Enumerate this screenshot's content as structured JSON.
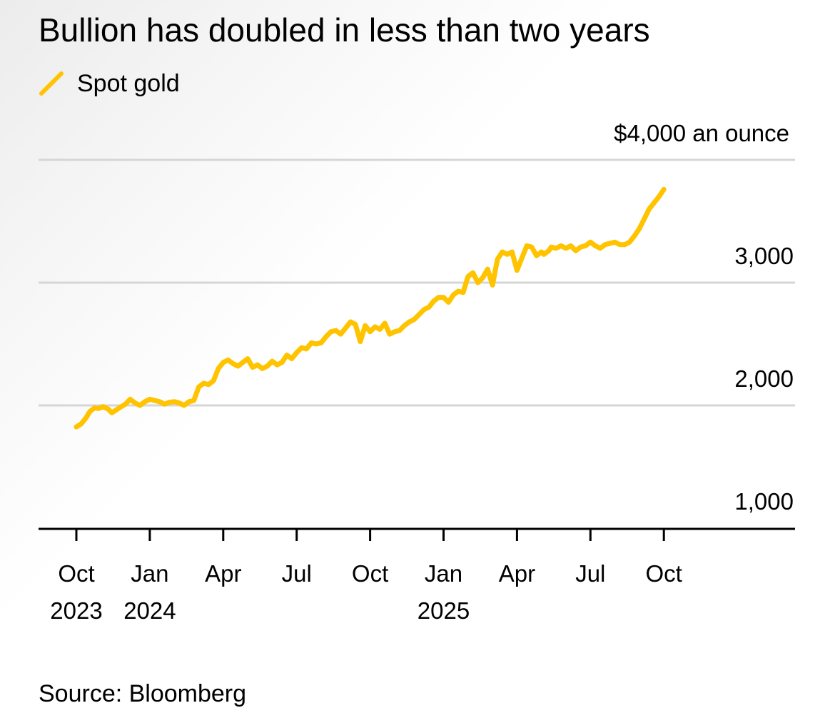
{
  "chart_data": {
    "type": "line",
    "title": "Bullion has doubled in less than two years",
    "legend": [
      {
        "name": "Spot gold",
        "color": "#FFC300"
      }
    ],
    "ylabel": "$4,000 an ounce",
    "ylim": [
      1000,
      4000
    ],
    "y_ticks": [
      {
        "value": 4000,
        "label": "$4,000 an ounce"
      },
      {
        "value": 3000,
        "label": "3,000"
      },
      {
        "value": 2000,
        "label": "2,000"
      },
      {
        "value": 1000,
        "label": "1,000"
      }
    ],
    "x_ticks": [
      {
        "month": 0,
        "label": "Oct",
        "sublabel": "2023"
      },
      {
        "month": 3,
        "label": "Jan",
        "sublabel": "2024"
      },
      {
        "month": 6,
        "label": "Apr",
        "sublabel": ""
      },
      {
        "month": 9,
        "label": "Jul",
        "sublabel": ""
      },
      {
        "month": 12,
        "label": "Oct",
        "sublabel": ""
      },
      {
        "month": 15,
        "label": "Jan",
        "sublabel": "2025"
      },
      {
        "month": 18,
        "label": "Apr",
        "sublabel": ""
      },
      {
        "month": 21,
        "label": "Jul",
        "sublabel": ""
      },
      {
        "month": 24,
        "label": "Oct",
        "sublabel": ""
      }
    ],
    "xlim_months": [
      -1.5,
      29.2
    ],
    "x_unit": "months since Oct 1, 2023",
    "series": [
      {
        "name": "Spot gold",
        "color": "#FFC300",
        "x": [
          0.0,
          0.2,
          0.4,
          0.55,
          0.75,
          0.9,
          1.1,
          1.3,
          1.45,
          1.6,
          1.8,
          2.0,
          2.2,
          2.4,
          2.6,
          2.8,
          3.0,
          3.2,
          3.4,
          3.6,
          3.8,
          4.0,
          4.2,
          4.4,
          4.6,
          4.8,
          5.0,
          5.2,
          5.4,
          5.6,
          5.8,
          6.0,
          6.2,
          6.4,
          6.6,
          6.8,
          7.0,
          7.2,
          7.4,
          7.6,
          7.8,
          8.0,
          8.2,
          8.4,
          8.6,
          8.8,
          9.0,
          9.2,
          9.4,
          9.6,
          9.8,
          10.0,
          10.2,
          10.4,
          10.6,
          10.8,
          11.0,
          11.2,
          11.4,
          11.6,
          11.8,
          12.0,
          12.2,
          12.4,
          12.6,
          12.8,
          13.0,
          13.2,
          13.4,
          13.6,
          13.8,
          14.0,
          14.2,
          14.4,
          14.6,
          14.8,
          15.0,
          15.2,
          15.4,
          15.6,
          15.8,
          16.0,
          16.2,
          16.4,
          16.6,
          16.8,
          17.0,
          17.2,
          17.4,
          17.6,
          17.8,
          18.0,
          18.1,
          18.3,
          18.4,
          18.6,
          18.8,
          19.0,
          19.1,
          19.3,
          19.4,
          19.6,
          19.8,
          20.0,
          20.2,
          20.4,
          20.6,
          20.8,
          21.0,
          21.2,
          21.4,
          21.6,
          21.8,
          22.0,
          22.2,
          22.4,
          22.6,
          22.8,
          23.0,
          23.2,
          23.4,
          23.6,
          23.8,
          24.0
        ],
        "values": [
          1825,
          1850,
          1900,
          1950,
          1980,
          1975,
          1990,
          1970,
          1940,
          1960,
          1985,
          2010,
          2050,
          2020,
          2000,
          2030,
          2050,
          2040,
          2030,
          2010,
          2025,
          2030,
          2020,
          2000,
          2030,
          2040,
          2150,
          2180,
          2170,
          2200,
          2300,
          2350,
          2370,
          2340,
          2320,
          2350,
          2380,
          2310,
          2330,
          2300,
          2320,
          2360,
          2330,
          2350,
          2410,
          2380,
          2430,
          2470,
          2460,
          2510,
          2500,
          2510,
          2560,
          2600,
          2610,
          2580,
          2630,
          2680,
          2660,
          2520,
          2650,
          2600,
          2640,
          2620,
          2670,
          2580,
          2600,
          2610,
          2650,
          2680,
          2700,
          2740,
          2780,
          2800,
          2850,
          2880,
          2880,
          2840,
          2900,
          2930,
          2920,
          3050,
          3080,
          3000,
          3040,
          3110,
          2980,
          3190,
          3250,
          3230,
          3250,
          3100,
          3150,
          3250,
          3300,
          3290,
          3220,
          3250,
          3230,
          3260,
          3290,
          3280,
          3300,
          3280,
          3300,
          3260,
          3290,
          3300,
          3330,
          3300,
          3280,
          3310,
          3320,
          3330,
          3310,
          3310,
          3330,
          3380,
          3440,
          3520,
          3600,
          3650,
          3700,
          3760
        ]
      }
    ]
  },
  "header": {
    "title": "Bullion has doubled in less than two years",
    "legend_label": "Spot gold",
    "legend_icon": "line-swatch"
  },
  "footer": {
    "source": "Source: Bloomberg"
  },
  "colors": {
    "series": "#FFC300",
    "grid": "#d6d6d6",
    "axis": "#000000",
    "text": "#000000"
  }
}
